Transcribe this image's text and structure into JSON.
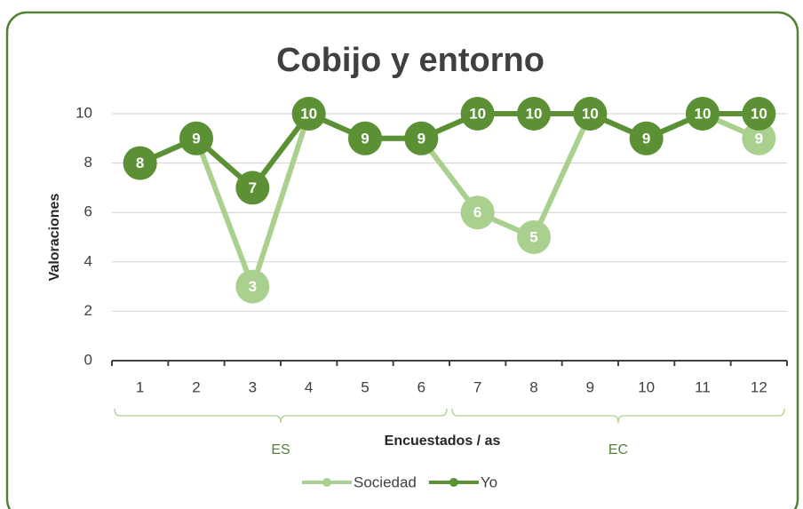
{
  "chart_data": {
    "type": "line",
    "title": "Cobijo y entorno",
    "y_label": "Valoraciones",
    "x_label": "Encuestados / as",
    "categories": [
      "1",
      "2",
      "3",
      "4",
      "5",
      "6",
      "7",
      "8",
      "9",
      "10",
      "11",
      "12"
    ],
    "groups": [
      "ES",
      "EC"
    ],
    "series": [
      {
        "name": "Sociedad",
        "color": "#a9d08e",
        "values": [
          8,
          9,
          3,
          10,
          9,
          9,
          6,
          5,
          10,
          9,
          10,
          9
        ]
      },
      {
        "name": "Yo",
        "color": "#5b9134",
        "values": [
          8,
          9,
          7,
          10,
          9,
          9,
          10,
          10,
          10,
          9,
          10,
          10
        ]
      }
    ],
    "ylim": [
      0,
      10
    ],
    "yticks": [
      0,
      2,
      4,
      6,
      8,
      10
    ],
    "grid": true,
    "legend": "bottom"
  }
}
